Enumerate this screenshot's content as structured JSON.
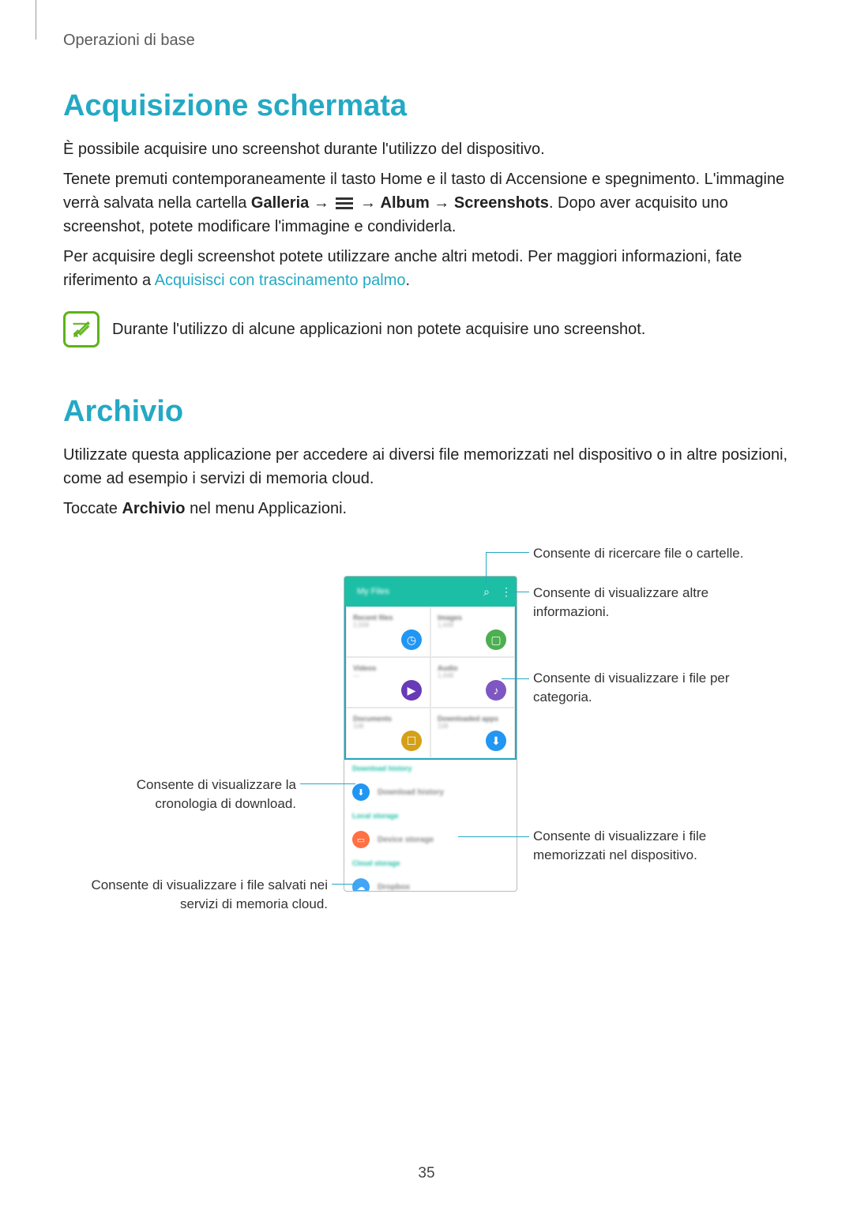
{
  "breadcrumb": "Operazioni di base",
  "section1": {
    "title": "Acquisizione schermata",
    "p1": "È possibile acquisire uno screenshot durante l'utilizzo del dispositivo.",
    "p2a": "Tenete premuti contemporaneamente il tasto Home e il tasto di Accensione e spegnimento. L'immagine verrà salvata nella cartella ",
    "p2b": "Galleria",
    "arrow": " → ",
    "p2c": "Album",
    "p2d": "Screenshots",
    "p2e": ". Dopo aver acquisito uno screenshot, potete modificare l'immagine e condividerla.",
    "p3a": "Per acquisire degli screenshot potete utilizzare anche altri metodi. Per maggiori informazioni, fate riferimento a ",
    "p3link": "Acquisisci con trascinamento palmo",
    "p3b": ".",
    "note": "Durante l'utilizzo di alcune applicazioni non potete acquisire uno screenshot."
  },
  "section2": {
    "title": "Archivio",
    "p1": "Utilizzate questa applicazione per accedere ai diversi file memorizzati nel dispositivo o in altre posizioni, come ad esempio i servizi di memoria cloud.",
    "p2a": "Toccate ",
    "p2b": "Archivio",
    "p2c": " nel menu Applicazioni."
  },
  "callouts": {
    "search": "Consente di ricercare file o cartelle.",
    "more": "Consente di visualizzare altre informazioni.",
    "category": "Consente di visualizzare i file per categoria.",
    "download": "Consente di visualizzare la cronologia di download.",
    "device": "Consente di visualizzare i file memorizzati nel dispositivo.",
    "cloud": "Consente di visualizzare i file salvati nei servizi di memoria cloud."
  },
  "phone": {
    "title": "My Files",
    "cells": [
      {
        "label": "Recent files",
        "sub": "2,008",
        "color": "#2196f3",
        "glyph": "◷"
      },
      {
        "label": "Images",
        "sub": "1,448",
        "color": "#4caf50",
        "glyph": "▢"
      },
      {
        "label": "Videos",
        "sub": "—",
        "color": "#673ab7",
        "glyph": "▶"
      },
      {
        "label": "Audio",
        "sub": "1,448",
        "color": "#7e57c2",
        "glyph": "♪"
      },
      {
        "label": "Documents",
        "sub": "108",
        "color": "#d4a017",
        "glyph": "☐"
      },
      {
        "label": "Downloaded apps",
        "sub": "108",
        "color": "#2196f3",
        "glyph": "⬇"
      }
    ],
    "sections": {
      "download_head": "Download history",
      "download_row": "Download history",
      "local_head": "Local storage",
      "device_row": "Device storage",
      "cloud_head": "Cloud storage",
      "cloud_row": "Dropbox"
    },
    "row_colors": {
      "download": "#2196f3",
      "device": "#ff7043",
      "cloud": "#42a5f5"
    }
  },
  "colors": {
    "accent": "#24a9c4",
    "note_border": "#5db317"
  },
  "page_number": "35"
}
